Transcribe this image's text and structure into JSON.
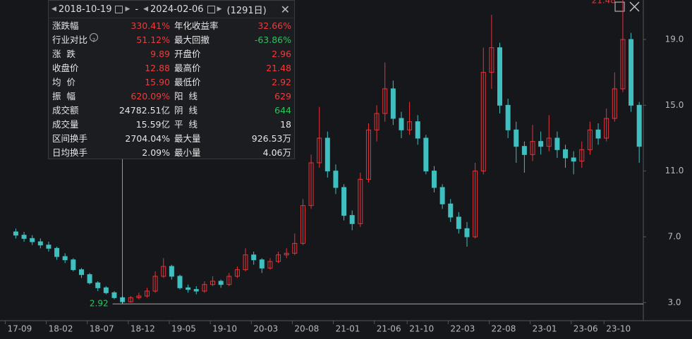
{
  "chart_data": {
    "type": "candlestick",
    "up_color": "#e8343a",
    "down_color": "#3fbfbf",
    "xlim": [
      -1.5,
      76.5
    ],
    "ylim": [
      1.9,
      21.4
    ],
    "yticks": [
      {
        "value": 3,
        "label": "3.0"
      },
      {
        "value": 7,
        "label": "7.0"
      },
      {
        "value": 11,
        "label": "11.0"
      },
      {
        "value": 15,
        "label": "15.0"
      },
      {
        "value": 19,
        "label": "19.0"
      }
    ],
    "xticks": [
      {
        "value": 0,
        "label": "17-09"
      },
      {
        "value": 5,
        "label": "18-02"
      },
      {
        "value": 10,
        "label": "18-07"
      },
      {
        "value": 15,
        "label": "18-12"
      },
      {
        "value": 20,
        "label": "19-05"
      },
      {
        "value": 25,
        "label": "19-10"
      },
      {
        "value": 30,
        "label": "20-03"
      },
      {
        "value": 35,
        "label": "20-08"
      },
      {
        "value": 40,
        "label": "21-01"
      },
      {
        "value": 45,
        "label": "21-06"
      },
      {
        "value": 49,
        "label": "21-10"
      },
      {
        "value": 54,
        "label": "22-03"
      },
      {
        "value": 59,
        "label": "22-08"
      },
      {
        "value": 64,
        "label": "23-01"
      },
      {
        "value": 69,
        "label": "23-06"
      },
      {
        "value": 73,
        "label": "23-10"
      }
    ],
    "low_mark": 2.92,
    "low_mark_x": 13,
    "high_mark": 21.48,
    "high_mark_x": 74,
    "candles": [
      [
        7.3,
        7.5,
        6.9,
        7.1
      ],
      [
        7.1,
        7.3,
        6.7,
        6.9
      ],
      [
        6.9,
        7.1,
        6.5,
        6.7
      ],
      [
        6.7,
        6.9,
        6.3,
        6.5
      ],
      [
        6.5,
        6.7,
        6.1,
        6.3
      ],
      [
        6.3,
        6.4,
        5.6,
        5.8
      ],
      [
        5.8,
        6.0,
        5.4,
        5.6
      ],
      [
        5.6,
        5.7,
        4.9,
        5.0
      ],
      [
        5.0,
        5.1,
        4.5,
        4.7
      ],
      [
        4.7,
        4.8,
        4.1,
        4.2
      ],
      [
        4.2,
        4.3,
        3.7,
        3.9
      ],
      [
        3.9,
        4.0,
        3.5,
        3.6
      ],
      [
        3.6,
        3.7,
        3.2,
        3.3
      ],
      [
        3.3,
        3.4,
        2.92,
        3.05
      ],
      [
        3.05,
        3.4,
        3.0,
        3.3
      ],
      [
        3.3,
        3.6,
        3.2,
        3.4
      ],
      [
        3.4,
        3.9,
        3.3,
        3.7
      ],
      [
        3.7,
        4.9,
        3.6,
        4.6
      ],
      [
        4.6,
        5.7,
        4.5,
        5.2
      ],
      [
        5.2,
        5.3,
        4.4,
        4.6
      ],
      [
        4.6,
        4.7,
        3.8,
        3.9
      ],
      [
        3.9,
        4.1,
        3.6,
        3.8
      ],
      [
        3.8,
        4.0,
        3.5,
        3.7
      ],
      [
        3.7,
        4.3,
        3.6,
        4.1
      ],
      [
        4.1,
        4.6,
        4.0,
        4.3
      ],
      [
        4.3,
        4.4,
        3.9,
        4.1
      ],
      [
        4.1,
        4.8,
        4.0,
        4.6
      ],
      [
        4.6,
        5.2,
        4.5,
        5.0
      ],
      [
        5.0,
        6.3,
        4.9,
        5.9
      ],
      [
        5.9,
        6.1,
        5.3,
        5.6
      ],
      [
        5.6,
        5.7,
        4.8,
        5.1
      ],
      [
        5.1,
        5.7,
        5.0,
        5.5
      ],
      [
        5.5,
        6.1,
        5.4,
        5.9
      ],
      [
        5.9,
        6.3,
        5.7,
        6.0
      ],
      [
        6.0,
        7.2,
        5.9,
        6.6
      ],
      [
        6.6,
        9.3,
        6.5,
        8.9
      ],
      [
        8.9,
        12.0,
        8.7,
        11.5
      ],
      [
        11.5,
        14.9,
        11.2,
        13.0
      ],
      [
        13.0,
        13.4,
        10.6,
        11.0
      ],
      [
        11.0,
        11.4,
        9.6,
        10.0
      ],
      [
        10.0,
        10.2,
        8.0,
        8.3
      ],
      [
        8.3,
        8.6,
        7.4,
        7.8
      ],
      [
        7.8,
        10.9,
        7.6,
        10.5
      ],
      [
        10.5,
        13.9,
        10.3,
        13.5
      ],
      [
        13.5,
        15.0,
        12.8,
        14.5
      ],
      [
        14.5,
        17.6,
        14.0,
        16.0
      ],
      [
        16.0,
        16.5,
        13.8,
        14.2
      ],
      [
        14.2,
        14.6,
        13.0,
        13.5
      ],
      [
        13.5,
        15.2,
        13.2,
        14.0
      ],
      [
        14.0,
        14.4,
        12.6,
        13.0
      ],
      [
        13.0,
        13.2,
        10.8,
        11.0
      ],
      [
        11.0,
        11.3,
        9.7,
        10.0
      ],
      [
        10.0,
        10.2,
        8.7,
        9.0
      ],
      [
        9.0,
        9.3,
        7.9,
        8.2
      ],
      [
        8.2,
        8.5,
        7.2,
        7.5
      ],
      [
        7.5,
        7.9,
        6.4,
        7.0
      ],
      [
        7.0,
        11.5,
        6.9,
        11.0
      ],
      [
        11.0,
        18.5,
        10.8,
        17.0
      ],
      [
        17.0,
        20.5,
        16.0,
        18.5
      ],
      [
        18.5,
        18.8,
        14.5,
        15.0
      ],
      [
        15.0,
        15.4,
        13.0,
        13.5
      ],
      [
        13.5,
        14.0,
        11.5,
        12.5
      ],
      [
        12.5,
        12.8,
        10.9,
        12.0
      ],
      [
        12.0,
        13.8,
        11.6,
        12.8
      ],
      [
        12.8,
        13.4,
        12.0,
        12.5
      ],
      [
        12.5,
        14.4,
        12.2,
        13.0
      ],
      [
        13.0,
        13.4,
        11.8,
        12.3
      ],
      [
        12.3,
        12.6,
        11.2,
        11.8
      ],
      [
        11.8,
        12.2,
        10.8,
        11.6
      ],
      [
        11.6,
        12.8,
        11.2,
        12.3
      ],
      [
        12.3,
        14.0,
        12.0,
        13.5
      ],
      [
        13.5,
        13.9,
        12.6,
        13.0
      ],
      [
        13.0,
        14.8,
        12.8,
        14.2
      ],
      [
        14.2,
        17.0,
        14.0,
        16.0
      ],
      [
        16.0,
        21.48,
        15.8,
        19.0
      ],
      [
        19.0,
        19.4,
        14.6,
        15.0
      ],
      [
        15.0,
        15.2,
        11.5,
        12.5
      ]
    ]
  },
  "panel": {
    "start_date": "2018-10-19",
    "separator": "-",
    "end_date": "2024-02-06",
    "days": "(1291日)",
    "rows": [
      [
        {
          "label": "涨跌幅",
          "value": "330.41%",
          "color": "#ee3b3b"
        },
        {
          "label": "年化收益率",
          "value": "32.66%",
          "color": "#ee3b3b"
        }
      ],
      [
        {
          "label": "行业对比",
          "info": true,
          "value": "51.12%",
          "color": "#ee3b3b"
        },
        {
          "label": "最大回撤",
          "value": "-63.86%",
          "color": "#2cc45c"
        }
      ],
      [
        {
          "label": "涨  跌",
          "value": "9.89",
          "color": "#ee3b3b"
        },
        {
          "label": "开盘价",
          "value": "2.96",
          "color": "#ee3b3b"
        }
      ],
      [
        {
          "label": "收盘价",
          "value": "12.88",
          "color": "#ee3b3b"
        },
        {
          "label": "最高价",
          "value": "21.48",
          "color": "#ee3b3b"
        }
      ],
      [
        {
          "label": "均  价",
          "value": "15.90",
          "color": "#ee3b3b"
        },
        {
          "label": "最低价",
          "value": "2.92",
          "color": "#ee3b3b"
        }
      ],
      [
        {
          "label": "振  幅",
          "value": "620.09%",
          "color": "#ee3b3b"
        },
        {
          "label": "阳  线",
          "value": "629",
          "color": "#ee3b3b"
        }
      ],
      [
        {
          "label": "成交额",
          "value": "24782.51亿",
          "color": "#e6e6e6"
        },
        {
          "label": "阴  线",
          "value": "644",
          "color": "#2cc45c"
        }
      ],
      [
        {
          "label": "成交量",
          "value": "15.59亿",
          "color": "#e6e6e6"
        },
        {
          "label": "平  线",
          "value": "18",
          "color": "#e6e6e6"
        }
      ],
      [
        {
          "label": "区间换手",
          "value": "2704.04%",
          "color": "#e6e6e6"
        },
        {
          "label": "最大量",
          "value": "926.53万",
          "color": "#e6e6e6"
        }
      ],
      [
        {
          "label": "日均换手",
          "value": "2.09%",
          "color": "#e6e6e6"
        },
        {
          "label": "最小量",
          "value": "4.06万",
          "color": "#e6e6e6"
        }
      ]
    ]
  }
}
